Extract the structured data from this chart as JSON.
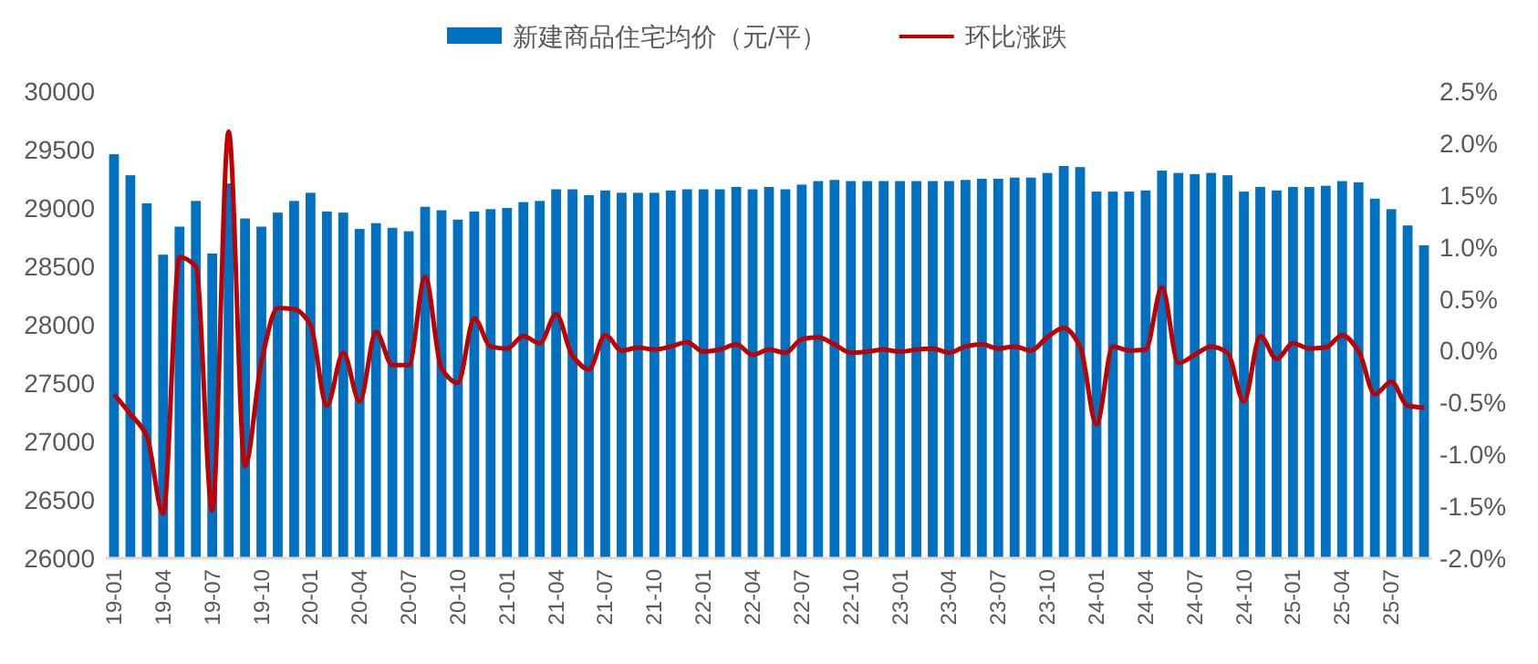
{
  "chart_data": {
    "type": "bar",
    "legend": "top",
    "categories": [
      "19-01",
      null,
      null,
      "19-04",
      null,
      null,
      "19-07",
      null,
      null,
      "19-10",
      null,
      null,
      "20-01",
      null,
      null,
      "20-04",
      null,
      null,
      "20-07",
      null,
      null,
      "20-10",
      null,
      null,
      "21-01",
      null,
      null,
      "21-04",
      null,
      null,
      "21-07",
      null,
      null,
      "21-10",
      null,
      null,
      "22-01",
      null,
      null,
      "22-04",
      null,
      null,
      "22-07",
      null,
      null,
      "22-10",
      null,
      null,
      "23-01",
      null,
      null,
      "23-04",
      null,
      null,
      "23-07",
      null,
      null,
      "23-10",
      null,
      null,
      "24-01",
      null,
      null,
      "24-04",
      null,
      null,
      "24-07",
      null,
      null,
      "24-10",
      null,
      null,
      "25-01",
      null,
      null,
      "25-04",
      null,
      null,
      "25-07",
      null,
      null
    ],
    "series": [
      {
        "name": "新建商品住宅均价（元/平）",
        "color": "#0070c0",
        "values": [
          29460,
          29280,
          29040,
          28600,
          28840,
          29060,
          28610,
          29210,
          28910,
          28840,
          28960,
          29060,
          29130,
          28970,
          28960,
          28820,
          28870,
          28830,
          28800,
          29010,
          28980,
          28900,
          28970,
          28990,
          29000,
          29050,
          29060,
          29160,
          29160,
          29110,
          29150,
          29130,
          29130,
          29130,
          29150,
          29160,
          29160,
          29160,
          29180,
          29160,
          29180,
          29160,
          29200,
          29230,
          29240,
          29230,
          29230,
          29230,
          29230,
          29230,
          29230,
          29230,
          29240,
          29250,
          29250,
          29260,
          29260,
          29300,
          29360,
          29350,
          29140,
          29140,
          29140,
          29150,
          29320,
          29300,
          29290,
          29300,
          29280,
          29140,
          29180,
          29150,
          29180,
          29180,
          29190,
          29230,
          29220,
          29080,
          28990,
          28850,
          28680
        ]
      },
      {
        "name": "环比涨跌",
        "type": "line",
        "axis": "y2",
        "color": "#c00000",
        "values": [
          -0.42,
          -0.61,
          -0.82,
          -1.57,
          0.9,
          0.81,
          -1.54,
          2.11,
          -1.11,
          -0.11,
          0.41,
          0.4,
          0.25,
          -0.53,
          -0.02,
          -0.49,
          0.18,
          -0.14,
          -0.14,
          0.71,
          -0.17,
          -0.31,
          0.31,
          0.04,
          0.02,
          0.14,
          0.07,
          0.35,
          -0.05,
          -0.18,
          0.15,
          0,
          0.03,
          0.01,
          0.04,
          0.08,
          -0.01,
          0.01,
          0.06,
          -0.04,
          0.01,
          -0.02,
          0.11,
          0.13,
          0.06,
          -0.02,
          -0.01,
          0.01,
          -0.01,
          0.01,
          0.02,
          -0.02,
          0.04,
          0.06,
          0.02,
          0.04,
          0,
          0.13,
          0.22,
          0.04,
          -0.71,
          0.04,
          0,
          0.01,
          0.61,
          -0.12,
          -0.04,
          0.04,
          -0.02,
          -0.49,
          0.14,
          -0.08,
          0.07,
          0.02,
          0.03,
          0.15,
          0,
          -0.42,
          -0.3,
          -0.53,
          -0.55
        ]
      }
    ],
    "ylim": [
      26000,
      30000
    ],
    "yticks": [
      26000,
      26500,
      27000,
      27500,
      28000,
      28500,
      29000,
      29500,
      30000
    ],
    "y2lim": [
      -2,
      2.5
    ],
    "y2ticks": [
      {
        "value": -2,
        "label": "-2.0%"
      },
      {
        "value": -1.5,
        "label": "-1.5%"
      },
      {
        "value": -1,
        "label": "-1.0%"
      },
      {
        "value": -0.5,
        "label": "-0.5%"
      },
      {
        "value": 0,
        "label": "0.0%"
      },
      {
        "value": 0.5,
        "label": "0.5%"
      },
      {
        "value": 1,
        "label": "1.0%"
      },
      {
        "value": 1.5,
        "label": "1.5%"
      },
      {
        "value": 2,
        "label": "2.0%"
      },
      {
        "value": 2.5,
        "label": "2.5%"
      }
    ]
  }
}
